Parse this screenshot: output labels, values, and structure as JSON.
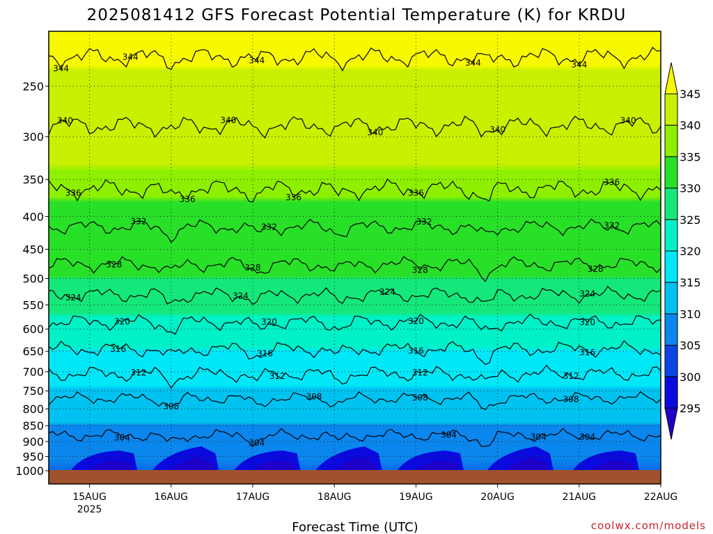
{
  "chart_data": {
    "type": "heatmap",
    "title": "2025081412 GFS Forecast Potential Temperature (K) for KRDU",
    "xlabel": "Forecast Time (UTC)",
    "ylabel": "",
    "credit": "coolwx.com/models",
    "x_ticks": [
      {
        "label": "15AUG",
        "sub": "2025",
        "day": 15
      },
      {
        "label": "16AUG",
        "sub": "",
        "day": 16
      },
      {
        "label": "17AUG",
        "sub": "",
        "day": 17
      },
      {
        "label": "18AUG",
        "sub": "",
        "day": 18
      },
      {
        "label": "19AUG",
        "sub": "",
        "day": 19
      },
      {
        "label": "20AUG",
        "sub": "",
        "day": 20
      },
      {
        "label": "21AUG",
        "sub": "",
        "day": 21
      },
      {
        "label": "22AUG",
        "sub": "",
        "day": 22
      }
    ],
    "x_range_days": [
      14.5,
      22.0
    ],
    "y_axis": "pressure (hPa), log scale, inverted",
    "y_range_hpa": [
      1050,
      200
    ],
    "y_ticks": [
      250,
      300,
      350,
      400,
      450,
      500,
      550,
      600,
      650,
      700,
      750,
      800,
      850,
      900,
      950,
      1000
    ],
    "colorbar": {
      "ticks": [
        345,
        340,
        335,
        330,
        325,
        320,
        315,
        310,
        305,
        300,
        295
      ],
      "colors": [
        "#f8f800",
        "#c8f000",
        "#8ef000",
        "#28e028",
        "#14e87a",
        "#00f0c8",
        "#00e8f8",
        "#00c2f0",
        "#0a86ec",
        "#0a46e6",
        "#0a0ade",
        "#1e00c8"
      ]
    },
    "contour_interval_K": 4,
    "contours": [
      {
        "value": 344,
        "p_hpa": 225,
        "label_positions": [
          14.65,
          15.5,
          17.05,
          19.7,
          21.0
        ]
      },
      {
        "value": 340,
        "p_hpa": 288,
        "label_positions": [
          14.7,
          16.7,
          18.5,
          20.0,
          21.6
        ]
      },
      {
        "value": 336,
        "p_hpa": 362,
        "label_positions": [
          14.8,
          16.2,
          17.5,
          19.0,
          21.4
        ]
      },
      {
        "value": 332,
        "p_hpa": 415,
        "label_positions": [
          15.6,
          17.2,
          19.1,
          21.4
        ]
      },
      {
        "value": 328,
        "p_hpa": 475,
        "label_positions": [
          15.3,
          17.0,
          19.05,
          21.2
        ]
      },
      {
        "value": 324,
        "p_hpa": 530,
        "label_positions": [
          14.8,
          16.85,
          18.65,
          21.1
        ]
      },
      {
        "value": 320,
        "p_hpa": 585,
        "label_positions": [
          15.4,
          17.2,
          19.0,
          21.1
        ]
      },
      {
        "value": 316,
        "p_hpa": 645,
        "label_positions": [
          15.35,
          17.15,
          19.0,
          21.1
        ]
      },
      {
        "value": 312,
        "p_hpa": 705,
        "label_positions": [
          15.6,
          17.3,
          19.05,
          20.9
        ]
      },
      {
        "value": 308,
        "p_hpa": 770,
        "label_positions": [
          16.0,
          17.75,
          19.05,
          20.9
        ]
      },
      {
        "value": 304,
        "p_hpa": 880,
        "label_positions": [
          15.4,
          17.05,
          19.4,
          20.5,
          21.1
        ]
      }
    ],
    "surface_fill_color": "#a0522d"
  }
}
